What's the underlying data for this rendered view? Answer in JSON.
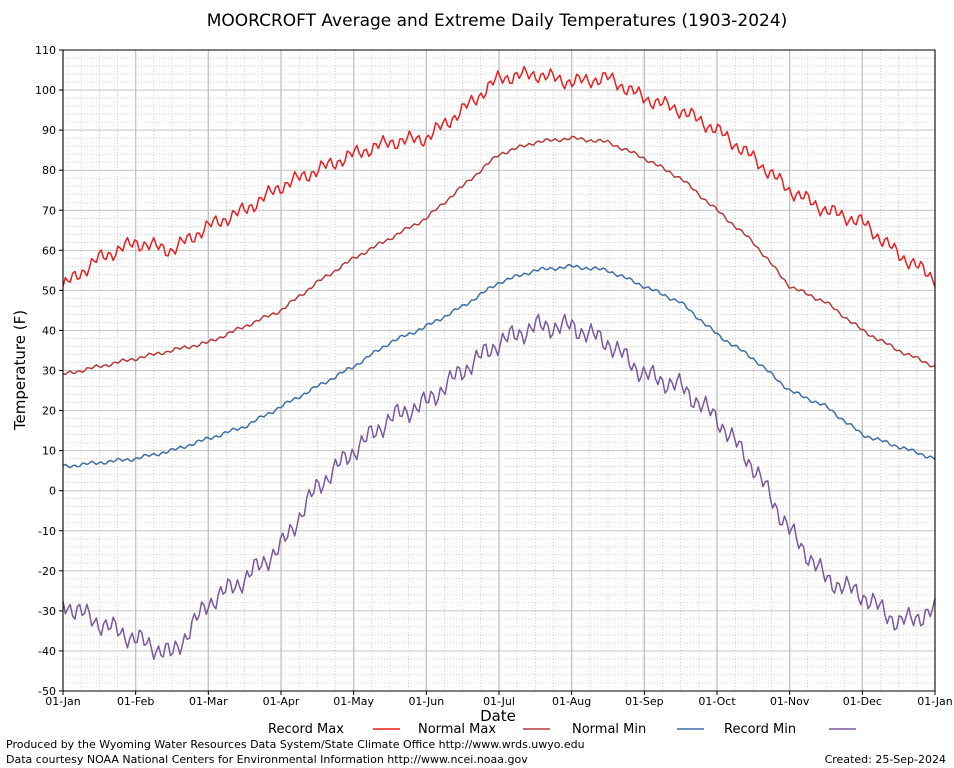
{
  "chart_data": {
    "type": "line",
    "title": "MOORCROFT Average and Extreme Daily Temperatures (1903-2024)",
    "xlabel": "Date",
    "ylabel": "Temperature (F)",
    "ylim": [
      -50,
      110
    ],
    "yticks": [
      110,
      100,
      90,
      80,
      70,
      60,
      50,
      40,
      30,
      20,
      10,
      0,
      -10,
      -20,
      -30,
      -40,
      -50
    ],
    "x_tick_labels": [
      "01-Jan",
      "01-Feb",
      "01-Mar",
      "01-Apr",
      "01-May",
      "01-Jun",
      "01-Jul",
      "01-Aug",
      "01-Sep",
      "01-Oct",
      "01-Nov",
      "01-Dec",
      "01-Jan"
    ],
    "grid": true,
    "legend_position": "bottom",
    "x_points_label": "approximate twice-monthly values (1st and 15th of each month, then 01-Jan)",
    "x": [
      "01-Jan",
      "15-Jan",
      "01-Feb",
      "15-Feb",
      "01-Mar",
      "15-Mar",
      "01-Apr",
      "15-Apr",
      "01-May",
      "15-May",
      "01-Jun",
      "15-Jun",
      "01-Jul",
      "15-Jul",
      "01-Aug",
      "15-Aug",
      "01-Sep",
      "15-Sep",
      "01-Oct",
      "15-Oct",
      "01-Nov",
      "15-Nov",
      "01-Dec",
      "15-Dec",
      "01-Jan"
    ],
    "series": [
      {
        "name": "Record Max",
        "color": "#ee1c1c",
        "values": [
          51,
          58,
          62,
          60,
          66,
          70,
          76,
          80,
          84,
          87,
          88,
          95,
          103,
          104,
          102,
          103,
          98,
          95,
          90,
          83,
          75,
          70,
          67,
          59,
          53
        ]
      },
      {
        "name": "Normal Max",
        "color": "#b53a3a",
        "values": [
          29,
          31,
          33,
          35,
          37,
          41,
          45,
          52,
          58,
          63,
          68,
          76,
          84,
          87,
          88,
          87,
          83,
          78,
          70,
          62,
          51,
          47,
          40,
          35,
          31
        ]
      },
      {
        "name": "Normal Min",
        "color": "#3f6fa8",
        "values": [
          6,
          7,
          8,
          10,
          13,
          16,
          21,
          26,
          31,
          37,
          41,
          46,
          52,
          55,
          56,
          55,
          51,
          47,
          39,
          33,
          25,
          21,
          14,
          11,
          8
        ]
      },
      {
        "name": "Record Min",
        "color": "#7b57a0",
        "values": [
          -28,
          -33,
          -37,
          -41,
          -28,
          -22,
          -14,
          1,
          10,
          18,
          22,
          30,
          37,
          41,
          41,
          37,
          29,
          26,
          18,
          6,
          -10,
          -22,
          -26,
          -33,
          -30
        ]
      }
    ]
  },
  "legend": [
    {
      "label": "Record Max",
      "color": "#ee1c1c"
    },
    {
      "label": "Normal Max",
      "color": "#b53a3a"
    },
    {
      "label": "Normal Min",
      "color": "#3f6fa8"
    },
    {
      "label": "Record Min",
      "color": "#7b57a0"
    }
  ],
  "footer": {
    "produced": "Produced by the Wyoming Water Resources Data System/State Climate Office http://www.wrds.uwyo.edu",
    "courtesy": "Data courtesy NOAA National Centers for Environmental Information http://www.ncei.noaa.gov",
    "created": "Created:  25-Sep-2024"
  }
}
